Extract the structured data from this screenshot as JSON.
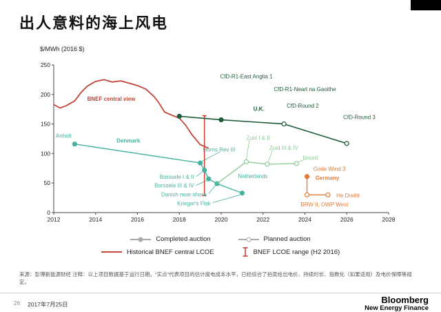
{
  "slide": {
    "title": "出人意料的海上风电",
    "page_number": "26",
    "date": "2017年7月25日",
    "logo_line1": "Bloomberg",
    "logo_line2": "New Energy Finance",
    "source_note": "来源：彭博新能源财经 注释：以上项目数据基于运行日期。“实点”代表项目的估计度电成本水平，已经综合了拍卖给出电价、持续时长、指数化（如果适用）及电价保障等规定。"
  },
  "legend": {
    "completed": "Completed auction",
    "planned": "Planned auction",
    "historical": "Historical BNEF central  LCOE",
    "range": "BNEF LCOE range (H2 2016)"
  },
  "chart_data": {
    "type": "line",
    "title": "出人意料的海上风电",
    "ylabel": "$/MWh (2016 $)",
    "xlabel": "",
    "xlim": [
      2012,
      2028
    ],
    "ylim": [
      0,
      250
    ],
    "xticks": [
      2012,
      2014,
      2016,
      2018,
      2020,
      2022,
      2024,
      2026,
      2028
    ],
    "yticks": [
      0,
      50,
      100,
      150,
      200,
      250
    ],
    "grid": false,
    "legend_position": "bottom",
    "series": [
      {
        "name": "Historical BNEF central LCOE",
        "color": "#c2453a",
        "width": 1.8,
        "points": [
          [
            2012,
            183
          ],
          [
            2012.3,
            177
          ],
          [
            2012.6,
            181
          ],
          [
            2013,
            189
          ],
          [
            2013.3,
            203
          ],
          [
            2013.6,
            214
          ],
          [
            2014,
            222
          ],
          [
            2014.4,
            225
          ],
          [
            2014.8,
            221
          ],
          [
            2015.2,
            223
          ],
          [
            2015.6,
            219
          ],
          [
            2016,
            215
          ],
          [
            2016.4,
            209
          ],
          [
            2016.8,
            196
          ],
          [
            2017,
            187
          ],
          [
            2017.3,
            170
          ],
          [
            2017.7,
            164
          ],
          [
            2018,
            160
          ],
          [
            2018.3,
            148
          ],
          [
            2018.6,
            132
          ],
          [
            2019,
            115
          ],
          [
            2019.4,
            109
          ]
        ],
        "markers": []
      },
      {
        "name": "U.K. CfD auctions",
        "color": "#1d5c38",
        "width": 1.6,
        "points": [
          [
            2018,
            163
          ],
          [
            2020,
            157
          ],
          [
            2023,
            150
          ],
          [
            2026,
            117
          ]
        ],
        "markers": [
          {
            "x": 2018,
            "y": 163,
            "style": "filled",
            "label": "CfD-R1-East Anglia 1"
          },
          {
            "x": 2020,
            "y": 157,
            "style": "filled",
            "label": "CfD-R1-Neart na Gaoithe"
          },
          {
            "x": 2023,
            "y": 150,
            "style": "open",
            "label": "CfD-Round 2"
          },
          {
            "x": 2026,
            "y": 117,
            "style": "open",
            "label": "CfD-Round 3"
          }
        ]
      },
      {
        "name": "Denmark / completed auctions",
        "color": "#45b29d",
        "width": 1.4,
        "points": [
          [
            2013,
            116
          ],
          [
            2019,
            84
          ],
          [
            2019.2,
            72
          ],
          [
            2019.4,
            57
          ],
          [
            2019.8,
            49
          ],
          [
            2021,
            33
          ]
        ],
        "markers": [
          {
            "x": 2013,
            "y": 116,
            "style": "filled",
            "label": "Anholt"
          },
          {
            "x": 2019,
            "y": 84,
            "style": "filled",
            "label": "Horns Rev III"
          },
          {
            "x": 2019.2,
            "y": 72,
            "style": "filled",
            "label": "Borssele I & II"
          },
          {
            "x": 2019.4,
            "y": 57,
            "style": "filled",
            "label": "Borssele III & IV"
          },
          {
            "x": 2019.8,
            "y": 49,
            "style": "filled",
            "label": "Danish near-shore"
          },
          {
            "x": 2021,
            "y": 33,
            "style": "filled",
            "label": "Krieger's Flak"
          }
        ]
      },
      {
        "name": "Netherlands planned auctions",
        "color": "#8ccb96",
        "width": 1.4,
        "points": [
          [
            2019.8,
            49
          ],
          [
            2021.2,
            86
          ],
          [
            2022.2,
            82
          ],
          [
            2023.6,
            83
          ]
        ],
        "markers": [
          {
            "x": 2021.2,
            "y": 86,
            "style": "open",
            "label": "Zuid I & II"
          },
          {
            "x": 2022.2,
            "y": 82,
            "style": "open",
            "label": "Zuid III & IV"
          },
          {
            "x": 2023.6,
            "y": 83,
            "style": "open",
            "label": "Noord"
          }
        ]
      },
      {
        "name": "Germany auctions",
        "color": "#e07b39",
        "width": 1.4,
        "points": [
          [
            2024.1,
            61
          ],
          [
            2024.1,
            30
          ],
          [
            2025.1,
            30
          ]
        ],
        "markers": [
          {
            "x": 2024.1,
            "y": 61,
            "style": "filled",
            "label": "Gode Wind 3"
          },
          {
            "x": 2024.1,
            "y": 30,
            "style": "open",
            "label": "BRW II, OWP West"
          },
          {
            "x": 2025.1,
            "y": 30,
            "style": "open",
            "label": "He Dreiht"
          }
        ]
      }
    ],
    "range_bars": [
      {
        "x": 2019.2,
        "y_low": 29,
        "y_high": 164,
        "color": "#c2453a",
        "label": "BNEF LCOE range (H2 2016)"
      }
    ],
    "annotations": [
      {
        "text": "BNEF central view",
        "x": 2013.6,
        "y": 193,
        "color": "#c2453a",
        "bold": true,
        "anchor": "start"
      },
      {
        "text": "Denmark",
        "x": 2015.0,
        "y": 122,
        "color": "#45b29d",
        "bold": true,
        "anchor": "start"
      },
      {
        "text": "Anholt",
        "x": 2012.1,
        "y": 130,
        "color": "#45b29d",
        "anchor": "start"
      },
      {
        "text": "CfD-R1-East Anglia 1",
        "x": 2021.2,
        "y": 231,
        "color": "#1d5c38",
        "anchor": "middle"
      },
      {
        "text": "CfD-R1-Neart na Gaoithe",
        "x": 2024.0,
        "y": 209,
        "color": "#1d5c38",
        "anchor": "middle"
      },
      {
        "text": "U.K.",
        "x": 2021.8,
        "y": 176,
        "color": "#1d5c38",
        "bold": true,
        "anchor": "middle"
      },
      {
        "text": "CfD-Round 2",
        "x": 2023.9,
        "y": 181,
        "color": "#1d5c38",
        "anchor": "middle"
      },
      {
        "text": "CfD-Round 3",
        "x": 2026.6,
        "y": 162,
        "color": "#1d5c38",
        "anchor": "middle"
      },
      {
        "text": "Horns Rev III",
        "x": 2019.9,
        "y": 107,
        "color": "#45b29d",
        "anchor": "middle"
      },
      {
        "text": "Borssele I & II",
        "x": 2018.7,
        "y": 61,
        "color": "#45b29d",
        "anchor": "end"
      },
      {
        "text": "Borssele III & IV",
        "x": 2018.7,
        "y": 46,
        "color": "#45b29d",
        "anchor": "end"
      },
      {
        "text": "Danish near-shore",
        "x": 2019.3,
        "y": 31,
        "color": "#45b29d",
        "anchor": "end"
      },
      {
        "text": "Krieger's Flak",
        "x": 2019.5,
        "y": 16,
        "color": "#45b29d",
        "anchor": "end"
      },
      {
        "text": "Zuid I & II",
        "x": 2021.2,
        "y": 127,
        "color": "#8ccb96",
        "anchor": "start"
      },
      {
        "text": "Zuid III & IV",
        "x": 2022.3,
        "y": 110,
        "color": "#8ccb96",
        "anchor": "start"
      },
      {
        "text": "Noord",
        "x": 2023.9,
        "y": 93,
        "color": "#8ccb96",
        "anchor": "start"
      },
      {
        "text": "Netherlands",
        "x": 2020.8,
        "y": 62,
        "color": "#45b29d",
        "anchor": "start"
      },
      {
        "text": "Gode Wind 3",
        "x": 2024.4,
        "y": 74,
        "color": "#e07b39",
        "anchor": "start"
      },
      {
        "text": "Germany",
        "x": 2024.5,
        "y": 59,
        "color": "#e07b39",
        "bold": true,
        "anchor": "start"
      },
      {
        "text": "He Dreiht",
        "x": 2025.5,
        "y": 29,
        "color": "#e07b39",
        "anchor": "start"
      },
      {
        "text": "BRW II, OWP West",
        "x": 2023.8,
        "y": 14,
        "color": "#e07b39",
        "anchor": "start"
      }
    ],
    "pointers": [
      {
        "x1": 2018.8,
        "y1": 61,
        "x2": 2019.15,
        "y2": 70,
        "color": "#45b29d"
      },
      {
        "x1": 2018.8,
        "y1": 46,
        "x2": 2019.35,
        "y2": 55,
        "color": "#45b29d"
      },
      {
        "x1": 2019.4,
        "y1": 32,
        "x2": 2019.75,
        "y2": 47,
        "color": "#45b29d"
      },
      {
        "x1": 2019.6,
        "y1": 17,
        "x2": 2020.9,
        "y2": 30,
        "color": "#45b29d"
      },
      {
        "x1": 2019.95,
        "y1": 103,
        "x2": 2019.1,
        "y2": 87,
        "color": "#45b29d"
      },
      {
        "x1": 2021.35,
        "y1": 123,
        "x2": 2021.2,
        "y2": 90,
        "color": "#8ccb96"
      },
      {
        "x1": 2022.45,
        "y1": 106,
        "x2": 2022.25,
        "y2": 86,
        "color": "#8ccb96"
      },
      {
        "x1": 2024.0,
        "y1": 90,
        "x2": 2023.7,
        "y2": 86,
        "color": "#8ccb96"
      }
    ]
  }
}
